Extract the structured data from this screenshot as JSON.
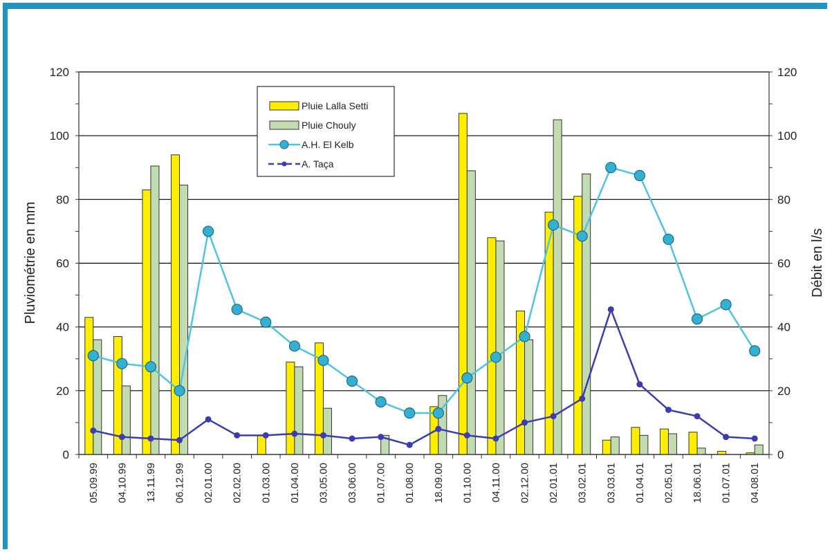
{
  "chart_data": {
    "type": "bar",
    "categories": [
      "05.09.99",
      "04.10.99",
      "13.11.99",
      "06.12.99",
      "02.01.00",
      "02.02.00",
      "01.03.00",
      "01.04.00",
      "03.05.00",
      "03.06.00",
      "01.07.00",
      "01.08.00",
      "18.09.00",
      "01.10.00",
      "04.11.00",
      "02.12.00",
      "02.01.01",
      "03.02.01",
      "03.03.01",
      "01.04.01",
      "02.05.01",
      "18.06.01",
      "01.07.01",
      "04.08.01"
    ],
    "ylabel": "Pluviométrie en mm",
    "y2label": "Débit en l/s",
    "ylim": [
      0,
      120
    ],
    "y2lim": [
      0,
      120
    ],
    "yticks": [
      "0",
      "20",
      "40",
      "60",
      "80",
      "100",
      "120"
    ],
    "y2ticks": [
      "0",
      "20",
      "40",
      "60",
      "80",
      "100",
      "120"
    ],
    "grid": true,
    "legend_position": "top-left",
    "series": [
      {
        "name": "Pluie Lalla Setti",
        "kind": "bar",
        "color": "#ffee00",
        "values": [
          43,
          37,
          83,
          94,
          0,
          0,
          6,
          29,
          35,
          0,
          0,
          0,
          15,
          107,
          68,
          45,
          76,
          81,
          4.5,
          8.5,
          8,
          7,
          1,
          0.5
        ]
      },
      {
        "name": "Pluie Chouly",
        "kind": "bar",
        "color": "#c2dbb0",
        "values": [
          36,
          21.5,
          90.5,
          84.5,
          0,
          0,
          0,
          27.5,
          14.5,
          0,
          6,
          0,
          18.5,
          89,
          67,
          36,
          105,
          88,
          5.5,
          6,
          6.5,
          2,
          0,
          3
        ]
      },
      {
        "name": "A.H. El Kelb",
        "kind": "line",
        "axis": "right",
        "color": "#4fc4e0",
        "marker_fill": "#36b0d0",
        "values": [
          31,
          28.5,
          27.5,
          20,
          70,
          45.5,
          41.5,
          34,
          29.5,
          23,
          16.5,
          13,
          13,
          24,
          30.5,
          37,
          72,
          68.5,
          90,
          87.5,
          67.5,
          42.5,
          47,
          32.5
        ]
      },
      {
        "name": "A. Taça",
        "kind": "line",
        "axis": "right",
        "color": "#3c3cb0",
        "marker_fill": "#3c3cb0",
        "values": [
          7.5,
          5.5,
          5,
          4.5,
          11,
          6,
          6,
          6.5,
          6,
          5,
          5.5,
          3,
          8,
          6,
          5,
          10,
          12,
          17.5,
          45.5,
          22,
          14,
          12,
          5.5,
          5
        ]
      }
    ]
  }
}
